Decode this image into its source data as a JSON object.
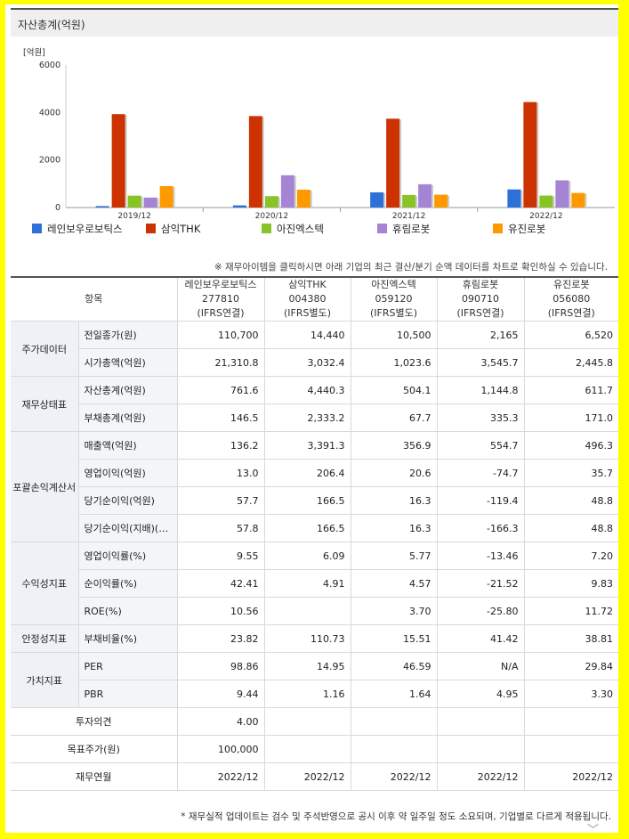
{
  "chart_header": {
    "title": "자산총계(억원)"
  },
  "chart_data": {
    "type": "bar",
    "unit_label": "[억원]",
    "ylim": [
      0,
      6000
    ],
    "yticks": [
      0,
      2000,
      4000,
      6000
    ],
    "categories": [
      "2019/12",
      "2020/12",
      "2021/12",
      "2022/12"
    ],
    "series": [
      {
        "name": "레인보우로보틱스",
        "color": "#2f6fd8",
        "values": [
          60,
          90,
          640,
          762
        ]
      },
      {
        "name": "삼익THK",
        "color": "#cc3300",
        "values": [
          3930,
          3850,
          3740,
          4440
        ]
      },
      {
        "name": "아진엑스텍",
        "color": "#88c425",
        "values": [
          500,
          480,
          530,
          504
        ]
      },
      {
        "name": "휴림로봇",
        "color": "#a584d6",
        "values": [
          420,
          1360,
          980,
          1145
        ]
      },
      {
        "name": "유진로봇",
        "color": "#ff9900",
        "values": [
          900,
          750,
          540,
          612
        ]
      }
    ]
  },
  "note": "※ 재무아이템을 클릭하시면 아래 기업의 최근 결산/분기 순액 데이터를 차트로 확인하실 수 있습니다.",
  "table": {
    "item_header": "항목",
    "companies": [
      {
        "name": "레인보우로보틱스",
        "code": "277810",
        "basis": "(IFRS연결)"
      },
      {
        "name": "삼익THK",
        "code": "004380",
        "basis": "(IFRS별도)"
      },
      {
        "name": "아진엑스텍",
        "code": "059120",
        "basis": "(IFRS별도)"
      },
      {
        "name": "휴림로봇",
        "code": "090710",
        "basis": "(IFRS연결)"
      },
      {
        "name": "유진로봇",
        "code": "056080",
        "basis": "(IFRS연결)"
      }
    ],
    "groups": [
      {
        "category": "주가데이터",
        "rows": [
          {
            "label": "전일종가(원)",
            "values": [
              "110,700",
              "14,440",
              "10,500",
              "2,165",
              "6,520"
            ]
          },
          {
            "label": "시가총액(억원)",
            "values": [
              "21,310.8",
              "3,032.4",
              "1,023.6",
              "3,545.7",
              "2,445.8"
            ]
          }
        ]
      },
      {
        "category": "재무상태표",
        "rows": [
          {
            "label": "자산총계(억원)",
            "values": [
              "761.6",
              "4,440.3",
              "504.1",
              "1,144.8",
              "611.7"
            ]
          },
          {
            "label": "부채총계(억원)",
            "values": [
              "146.5",
              "2,333.2",
              "67.7",
              "335.3",
              "171.0"
            ]
          }
        ]
      },
      {
        "category": "포괄손익계산서",
        "rows": [
          {
            "label": "매출액(억원)",
            "values": [
              "136.2",
              "3,391.3",
              "356.9",
              "554.7",
              "496.3"
            ]
          },
          {
            "label": "영업이익(억원)",
            "values": [
              "13.0",
              "206.4",
              "20.6",
              "-74.7",
              "35.7"
            ]
          },
          {
            "label": "당기순이익(억원)",
            "values": [
              "57.7",
              "166.5",
              "16.3",
              "-119.4",
              "48.8"
            ]
          },
          {
            "label": "당기순이익(지배)(억원)",
            "values": [
              "57.8",
              "166.5",
              "16.3",
              "-166.3",
              "48.8"
            ]
          }
        ]
      },
      {
        "category": "수익성지표",
        "rows": [
          {
            "label": "영업이익률(%)",
            "values": [
              "9.55",
              "6.09",
              "5.77",
              "-13.46",
              "7.20"
            ]
          },
          {
            "label": "순이익률(%)",
            "values": [
              "42.41",
              "4.91",
              "4.57",
              "-21.52",
              "9.83"
            ]
          },
          {
            "label": "ROE(%)",
            "values": [
              "10.56",
              "",
              "3.70",
              "-25.80",
              "11.72"
            ]
          }
        ]
      },
      {
        "category": "안정성지표",
        "rows": [
          {
            "label": "부채비율(%)",
            "values": [
              "23.82",
              "110.73",
              "15.51",
              "41.42",
              "38.81"
            ]
          }
        ]
      },
      {
        "category": "가치지표",
        "rows": [
          {
            "label": "PER",
            "values": [
              "98.86",
              "14.95",
              "46.59",
              "N/A",
              "29.84"
            ]
          },
          {
            "label": "PBR",
            "values": [
              "9.44",
              "1.16",
              "1.64",
              "4.95",
              "3.30"
            ]
          }
        ]
      }
    ],
    "extra_rows": [
      {
        "label": "투자의견",
        "values": [
          "4.00",
          "",
          "",
          "",
          ""
        ]
      },
      {
        "label": "목표주가(원)",
        "values": [
          "100,000",
          "",
          "",
          "",
          ""
        ]
      },
      {
        "label": "재무연월",
        "values": [
          "2022/12",
          "2022/12",
          "2022/12",
          "2022/12",
          "2022/12"
        ]
      }
    ]
  },
  "footer_note": "* 재무실적 업데이트는 검수 및 주석반영으로 공시 이후 약 일주일 정도 소요되며, 기업별로 다르게 적용됩니다."
}
